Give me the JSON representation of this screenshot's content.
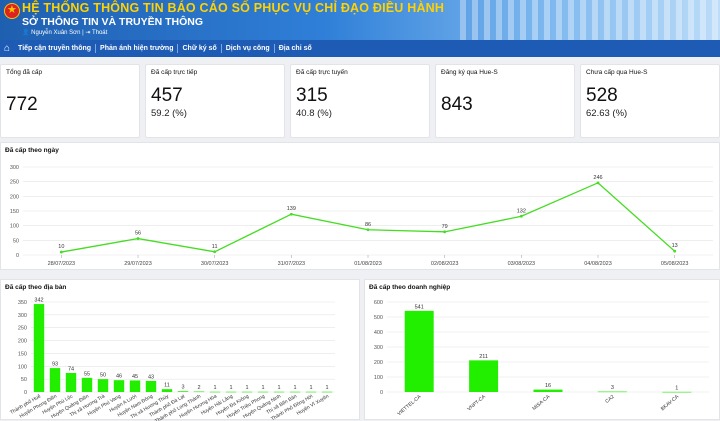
{
  "header": {
    "title": "HỆ THỐNG THÔNG TIN BÁO CÁO SỐ PHỤC VỤ CHỈ ĐẠO ĐIỀU HÀNH",
    "subtitle": "SỞ THÔNG TIN VÀ TRUYỀN THÔNG",
    "user": "Nguyễn Xuân Sơn",
    "logout": "Thoát"
  },
  "nav": {
    "items": [
      "Tiếp cận truyền thông",
      "Phản ánh hiện trường",
      "Chữ ký số",
      "Dịch vụ công",
      "Địa chỉ số"
    ]
  },
  "stats": [
    {
      "label": "Tổng đã cấp",
      "value": "772",
      "pct": ""
    },
    {
      "label": "Đã cấp trực tiếp",
      "value": "457",
      "pct": "59.2 (%)"
    },
    {
      "label": "Đã cấp trực tuyến",
      "value": "315",
      "pct": "40.8 (%)"
    },
    {
      "label": "Đăng ký qua Hue-S",
      "value": "843",
      "pct": ""
    },
    {
      "label": "Chưa cấp qua Hue-S",
      "value": "528",
      "pct": "62.63 (%)"
    }
  ],
  "colors": {
    "line": "#44dd22",
    "bar": "#22ee00",
    "header": "#1f5fb0",
    "nav": "#1d5bb5",
    "title": "#ffd200"
  },
  "chart_data": [
    {
      "type": "line",
      "title": "Đã cấp theo ngày",
      "x": [
        "28/07/2023",
        "29/07/2023",
        "30/07/2023",
        "31/07/2023",
        "01/08/2023",
        "02/08/2023",
        "03/08/2023",
        "04/08/2023",
        "05/08/2023"
      ],
      "values": [
        10,
        56,
        11,
        139,
        86,
        79,
        132,
        246,
        13
      ],
      "ylim": [
        0,
        300
      ],
      "yticks": [
        0,
        50,
        100,
        150,
        200,
        250,
        300
      ],
      "grid": true
    },
    {
      "type": "bar",
      "title": "Đã cấp theo địa bàn",
      "categories": [
        "Thành phố Huế",
        "Huyện Phong Điền",
        "Huyện Phú Lộc",
        "Huyện Quảng Điền",
        "Thị xã Hương Trà",
        "Huyện Phú Vang",
        "Huyện A Lưới",
        "Huyện Nam Đông",
        "Thị xã Hương Thủy",
        "Thành phố Đà Lạt",
        "Thành phố Long Thành",
        "Huyện Hương Hòa",
        "Huyện Hải Lăng",
        "Huyện Đa Krông",
        "Huyện Triệu Phong",
        "Huyện Quảng Ninh",
        "Thị xã Bến Bán",
        "Thành Phố Đông Hới",
        "Huyện Vĩ Xuyên"
      ],
      "values": [
        342,
        93,
        74,
        55,
        50,
        46,
        45,
        43,
        11,
        3,
        2,
        1,
        1,
        1,
        1,
        1,
        1,
        1,
        1
      ],
      "ylim": [
        0,
        350
      ],
      "yticks": [
        0,
        50,
        100,
        150,
        200,
        250,
        300,
        350
      ],
      "grid": true
    },
    {
      "type": "bar",
      "title": "Đã cấp theo doanh nghiệp",
      "categories": [
        "VIETTEL-CA",
        "VNPT-CA",
        "MISA-CA",
        "CA2",
        "BKAV-CA"
      ],
      "values": [
        541,
        211,
        16,
        3,
        1
      ],
      "ylim": [
        0,
        600
      ],
      "yticks": [
        0,
        100,
        200,
        300,
        400,
        500,
        600
      ],
      "grid": true
    }
  ]
}
